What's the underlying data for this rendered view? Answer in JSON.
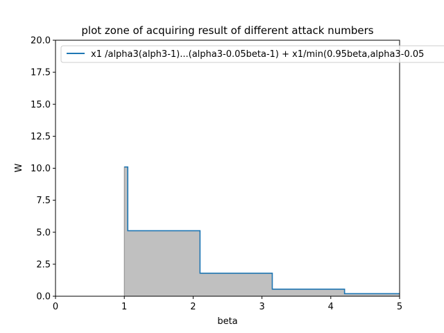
{
  "chart_data": {
    "type": "area",
    "title": "plot zone of acquiring result of different attack numbers",
    "xlabel": "beta",
    "ylabel": "W",
    "xlim": [
      0,
      5
    ],
    "ylim": [
      0,
      20
    ],
    "xticks": [
      "0",
      "1",
      "2",
      "3",
      "4",
      "5"
    ],
    "yticks": [
      "0.0",
      "2.5",
      "5.0",
      "7.5",
      "10.0",
      "12.5",
      "15.0",
      "17.5",
      "20.0"
    ],
    "grid": false,
    "legend_position": "top-left",
    "series": [
      {
        "name": "x1 /alpha3(alph3-1)...(alpha3-0.05beta-1) + x1/min(0.95beta,alpha3-0.05",
        "color": "#1f77b4",
        "fill": "#c0c0c0",
        "step": true,
        "x": [
          1.0,
          1.05,
          1.05,
          2.1,
          2.1,
          3.15,
          3.15,
          4.2,
          4.2,
          5.0
        ],
        "y": [
          10.1,
          10.1,
          5.12,
          5.12,
          1.8,
          1.8,
          0.55,
          0.55,
          0.2,
          0.2
        ]
      }
    ]
  }
}
